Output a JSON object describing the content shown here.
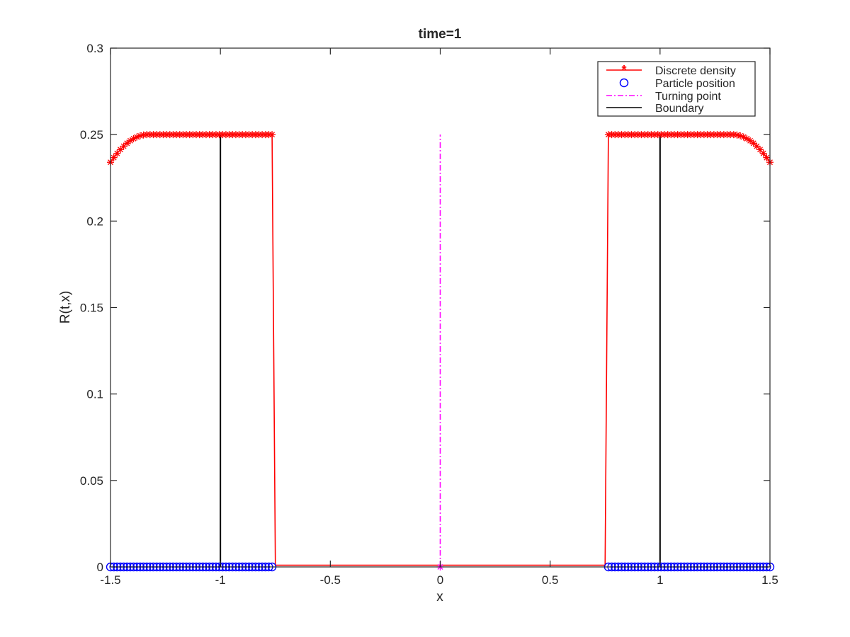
{
  "chart_data": {
    "type": "line",
    "title": "time=1",
    "xlabel": "x",
    "ylabel": "R(t,x)",
    "xlim": [
      -1.5,
      1.5
    ],
    "ylim": [
      0,
      0.3
    ],
    "xticks": [
      -1.5,
      -1,
      -0.5,
      0,
      0.5,
      1,
      1.5
    ],
    "xtick_labels": [
      "-1.5",
      "-1",
      "-0.5",
      "0",
      "0.5",
      "1",
      "1.5"
    ],
    "yticks": [
      0,
      0.05,
      0.1,
      0.15,
      0.2,
      0.25,
      0.3
    ],
    "ytick_labels": [
      "0",
      "0.05",
      "0.1",
      "0.15",
      "0.2",
      "0.25",
      "0.3"
    ],
    "grid": false,
    "legend_position": "top-right",
    "series": [
      {
        "name": "Discrete density",
        "style": "solid line with asterisk markers",
        "color": "#ff0000",
        "left_cluster": {
          "x_start": -1.5,
          "x_end": -0.765,
          "n_points": 50
        },
        "right_cluster": {
          "x_start": 0.765,
          "x_end": 1.5,
          "n_points": 50
        },
        "plateau": 0.25,
        "edge_value": 0.234,
        "edge_width": 0.17,
        "between": {
          "x_from": -0.75,
          "x_to": 0.75,
          "value": 0.001
        }
      },
      {
        "name": "Particle position",
        "style": "circle markers",
        "color": "#0000ff",
        "y": 0
      },
      {
        "name": "Turning point",
        "style": "dash-dot line",
        "color": "#ff00ff",
        "x": 0,
        "y_range": [
          0,
          0.25
        ]
      },
      {
        "name": "Boundary",
        "style": "solid line",
        "color": "#000000",
        "x": [
          -1,
          1
        ],
        "y_range": [
          0,
          0.25
        ]
      }
    ]
  }
}
